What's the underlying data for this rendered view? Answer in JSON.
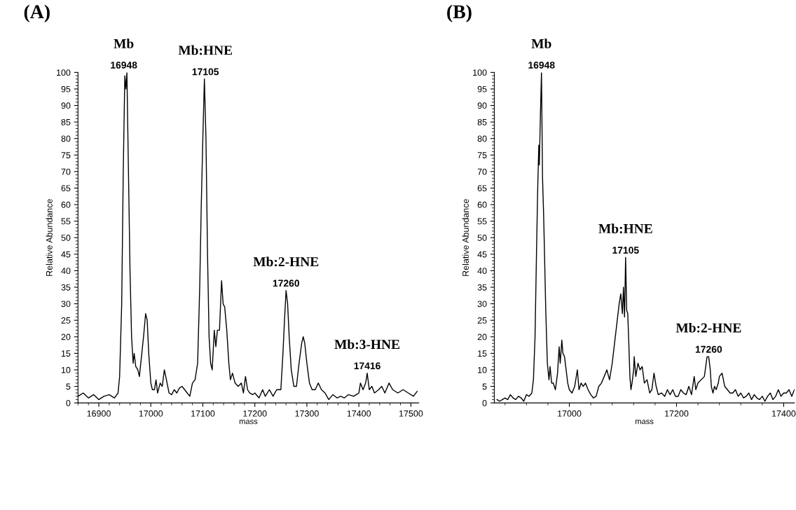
{
  "chart_data": [
    {
      "type": "line",
      "title": "(A)",
      "xlabel": "mass",
      "ylabel": "Relative Abundance",
      "xlim": [
        16860,
        17515
      ],
      "xticks": [
        16900,
        17000,
        17100,
        17200,
        17300,
        17400,
        17500
      ],
      "ylim": [
        0,
        100
      ],
      "yticks": [
        0,
        5,
        10,
        15,
        20,
        25,
        30,
        35,
        40,
        45,
        50,
        55,
        60,
        65,
        70,
        75,
        80,
        85,
        90,
        95,
        100
      ],
      "grid": false,
      "series": [
        {
          "color": "#000000",
          "x": [
            16860,
            16870,
            16880,
            16890,
            16900,
            16910,
            16920,
            16930,
            16937,
            16940,
            16944,
            16947,
            16948,
            16950,
            16952,
            16954,
            16957,
            16960,
            16963,
            16966,
            16968,
            16971,
            16975,
            16978,
            16982,
            16986,
            16990,
            16993,
            16996,
            17000,
            17003,
            17007,
            17010,
            17013,
            17018,
            17022,
            17026,
            17030,
            17035,
            17040,
            17045,
            17050,
            17055,
            17060,
            17065,
            17070,
            17075,
            17080,
            17085,
            17090,
            17094,
            17097,
            17100,
            17103,
            17106,
            17109,
            17112,
            17115,
            17118,
            17122,
            17125,
            17128,
            17132,
            17136,
            17139,
            17142,
            17146,
            17150,
            17153,
            17157,
            17162,
            17168,
            17174,
            17178,
            17182,
            17186,
            17190,
            17196,
            17200,
            17208,
            17215,
            17220,
            17228,
            17235,
            17242,
            17250,
            17254,
            17257,
            17260,
            17263,
            17266,
            17270,
            17275,
            17280,
            17285,
            17290,
            17293,
            17296,
            17300,
            17305,
            17310,
            17316,
            17322,
            17328,
            17335,
            17342,
            17350,
            17358,
            17365,
            17372,
            17380,
            17390,
            17400,
            17403,
            17408,
            17413,
            17416,
            17420,
            17425,
            17430,
            17438,
            17444,
            17450,
            17458,
            17465,
            17475,
            17485,
            17495,
            17505,
            17512
          ],
          "values": [
            2,
            3,
            1.5,
            2.5,
            1,
            2,
            2.5,
            1.5,
            3,
            8,
            30,
            70,
            80,
            99,
            95,
            100,
            70,
            40,
            20,
            12,
            15,
            11,
            10,
            8,
            14,
            20,
            27,
            25,
            15,
            6,
            4,
            4,
            7,
            3,
            6,
            5,
            10,
            7,
            3,
            2.5,
            4,
            3,
            4.5,
            5,
            4,
            3,
            2,
            6,
            7,
            12,
            35,
            60,
            80,
            98,
            80,
            45,
            20,
            12,
            10,
            22,
            17,
            22,
            22,
            37,
            30,
            29,
            22,
            12,
            7,
            9,
            6,
            5,
            6,
            3,
            8,
            4,
            3,
            2.5,
            3,
            1.5,
            4,
            2,
            4,
            2,
            4,
            4,
            15,
            25,
            34,
            30,
            20,
            10,
            5,
            5,
            12,
            18,
            20,
            18,
            12,
            6,
            4,
            4,
            6,
            4,
            3,
            1,
            2.5,
            1.5,
            2,
            1.5,
            2.5,
            2,
            3,
            6,
            4,
            6,
            9,
            4,
            5,
            3,
            4,
            5,
            3,
            6,
            4,
            3,
            4,
            3,
            2,
            3.5
          ]
        }
      ],
      "annotations": [
        {
          "text": "Mb",
          "x": 16948,
          "y": 100
        },
        {
          "text": "16948",
          "x": 16948,
          "y": 100
        },
        {
          "text": "Mb:HNE",
          "x": 17105,
          "y": 98
        },
        {
          "text": "17105",
          "x": 17105,
          "y": 98
        },
        {
          "text": "Mb:2-HNE",
          "x": 17260,
          "y": 34
        },
        {
          "text": "17260",
          "x": 17260,
          "y": 34
        },
        {
          "text": "Mb:3-HNE",
          "x": 17416,
          "y": 9
        },
        {
          "text": "17416",
          "x": 17416,
          "y": 9
        }
      ]
    },
    {
      "type": "line",
      "title": "(B)",
      "xlabel": "mass",
      "ylabel": "Relative Abundance",
      "xlim": [
        16860,
        17420
      ],
      "xticks": [
        17000,
        17200,
        17400
      ],
      "ylim": [
        0,
        100
      ],
      "yticks": [
        0,
        5,
        10,
        15,
        20,
        25,
        30,
        35,
        40,
        45,
        50,
        55,
        60,
        65,
        70,
        75,
        80,
        85,
        90,
        95,
        100
      ],
      "grid": false,
      "series": [
        {
          "color": "#000000",
          "x": [
            16865,
            16870,
            16875,
            16880,
            16885,
            16890,
            16895,
            16900,
            16905,
            16910,
            16915,
            16920,
            16925,
            16930,
            16933,
            16936,
            16939,
            16941,
            16943,
            16944,
            16946,
            16948,
            16950,
            16952,
            16953,
            16956,
            16959,
            16962,
            16964,
            16967,
            16970,
            16974,
            16978,
            16981,
            16983,
            16986,
            16988,
            16991,
            16994,
            16997,
            17000,
            17005,
            17010,
            17015,
            17018,
            17022,
            17026,
            17030,
            17035,
            17040,
            17045,
            17050,
            17055,
            17060,
            17065,
            17070,
            17075,
            17080,
            17093,
            17096,
            17099,
            17101,
            17103,
            17105,
            17107,
            17109,
            17111,
            17113,
            17115,
            17117,
            17120,
            17121,
            17124,
            17128,
            17132,
            17136,
            17140,
            17145,
            17150,
            17154,
            17158,
            17162,
            17166,
            17172,
            17178,
            17183,
            17188,
            17193,
            17198,
            17203,
            17208,
            17213,
            17218,
            17223,
            17228,
            17233,
            17236,
            17240,
            17252,
            17257,
            17260,
            17263,
            17265,
            17268,
            17271,
            17274,
            17278,
            17280,
            17285,
            17290,
            17295,
            17300,
            17305,
            17310,
            17315,
            17320,
            17325,
            17330,
            17335,
            17340,
            17345,
            17350,
            17355,
            17360,
            17365,
            17370,
            17375,
            17380,
            17385,
            17390,
            17395,
            17400,
            17405,
            17410,
            17415,
            17420
          ],
          "values": [
            1,
            0.5,
            1,
            1.5,
            1,
            2.5,
            1.5,
            1,
            2,
            1.5,
            0.5,
            2.5,
            2,
            3,
            7,
            20,
            48,
            65,
            78,
            72,
            87,
            100,
            68,
            57,
            50,
            28,
            12,
            7,
            11,
            6,
            6,
            4,
            9,
            17,
            12,
            19,
            15,
            14,
            10,
            6,
            4,
            3,
            5,
            10,
            4,
            6,
            5,
            6,
            4,
            2.5,
            1.5,
            2,
            5,
            6,
            8,
            10,
            7,
            12,
            30,
            33,
            27,
            35,
            26,
            44,
            28,
            27,
            18,
            8,
            4,
            6,
            10,
            14,
            8,
            12,
            10,
            11,
            6,
            7,
            3,
            4,
            9,
            5,
            2.5,
            3,
            2,
            4,
            2.5,
            4,
            2,
            2,
            4,
            3,
            2.5,
            5,
            2.5,
            8,
            4,
            6,
            8,
            14,
            14,
            10,
            5,
            3,
            5,
            4,
            6,
            8,
            9,
            5,
            4,
            3,
            3,
            4,
            2,
            3,
            1.5,
            2,
            3,
            1,
            2.5,
            1.5,
            1,
            2,
            0.5,
            2,
            3,
            1,
            2,
            4,
            2,
            3,
            3,
            4,
            2,
            4
          ]
        }
      ],
      "annotations": [
        {
          "text": "Mb",
          "x": 16948,
          "y": 100
        },
        {
          "text": "16948",
          "x": 16948,
          "y": 100
        },
        {
          "text": "Mb:HNE",
          "x": 17105,
          "y": 44
        },
        {
          "text": "17105",
          "x": 17105,
          "y": 44
        },
        {
          "text": "Mb:2-HNE",
          "x": 17260,
          "y": 14
        },
        {
          "text": "17260",
          "x": 17260,
          "y": 14
        }
      ]
    }
  ]
}
